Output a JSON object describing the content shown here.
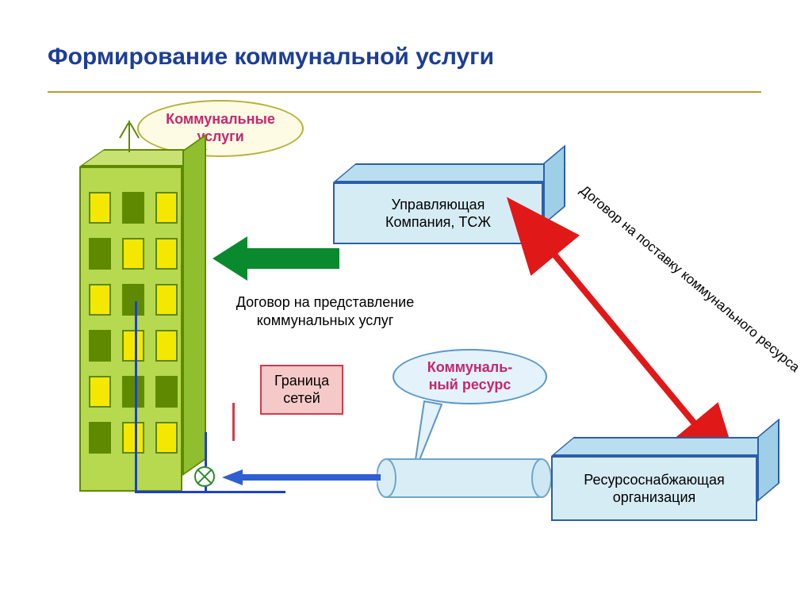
{
  "title": {
    "text": "Формирование коммунальной услуги",
    "color": "#1c3e96",
    "fontsize": 30
  },
  "rule_color": "#b89a3a",
  "building": {
    "front_color": "#b6d94f",
    "side_color": "#8fbf2f",
    "top_color": "#c8e173",
    "border_color": "#5f8a00",
    "window_lit_color": "#f5e800",
    "window_dark_color": "#5f8a00",
    "lit_pattern": [
      1,
      0,
      1,
      0,
      1,
      1,
      1,
      0,
      1,
      0,
      1,
      1,
      1,
      0,
      0,
      0,
      1,
      1
    ],
    "pipe_color": "#1d3fd1"
  },
  "callouts": {
    "utilities": {
      "line1": "Коммунальные",
      "line2": "услуги"
    },
    "resource": {
      "line1": "Коммуналь-",
      "line2": "ный ресурс"
    }
  },
  "blocks": {
    "mgmt": {
      "line1": "Управляющая",
      "line2": "Компания, ТСЖ",
      "front": "#d6ecf5",
      "top": "#b9def0",
      "side": "#9ecfe6"
    },
    "supply": {
      "line1": "Ресурсоснабжающая",
      "line2": "организация",
      "front": "#d6ecf5",
      "top": "#b9def0",
      "side": "#9ecfe6"
    }
  },
  "labels": {
    "provision": {
      "line1": "Договор на представление",
      "line2": "коммунальных услуг",
      "color": "#000000"
    },
    "boundary": {
      "line1": "Граница",
      "line2": "сетей",
      "bg": "#f6c9c9",
      "border": "#d7394a",
      "text": "#000000"
    },
    "supply_contract": "Договор на поставку коммунального  ресурса"
  },
  "arrows": {
    "green": {
      "color": "#0a8a2f",
      "shaft_h": 26,
      "head_w": 44,
      "head_h": 56
    },
    "red": {
      "color": "#e11818",
      "shaft_w": 8
    },
    "blue": {
      "color": "#2f5fd1",
      "shaft_h": 8,
      "head_w": 26,
      "head_h": 20
    }
  },
  "cylinder": {
    "body": "#d9edf7",
    "border": "#6fa6c9"
  }
}
